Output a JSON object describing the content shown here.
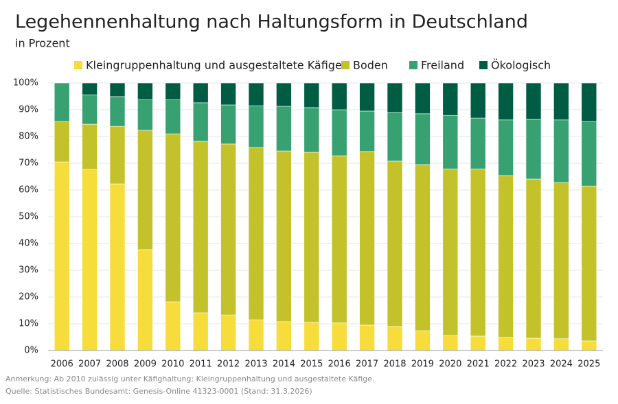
{
  "chart_data": {
    "type": "stacked_bar",
    "title": "Legehennenhaltung nach Haltungsform in Deutschland",
    "subtitle": "in Prozent",
    "categories": [
      "2006",
      "2007",
      "2008",
      "2009",
      "2010",
      "2011",
      "2012",
      "2013",
      "2014",
      "2015",
      "2016",
      "2017",
      "2018",
      "2019",
      "2020",
      "2021",
      "2022",
      "2023",
      "2024",
      "2025"
    ],
    "series": [
      {
        "name": "Kleingruppenhaltung und ausgestaltete Käfige",
        "color": "#f7dd3b",
        "values": [
          70.5,
          67.7,
          62.3,
          37.7,
          18.2,
          14.1,
          13.3,
          11.5,
          10.8,
          10.5,
          10.3,
          9.5,
          9.0,
          7.4,
          5.6,
          5.4,
          4.9,
          4.6,
          4.4,
          3.6
        ]
      },
      {
        "name": "Boden",
        "color": "#c3c22a",
        "values": [
          15.1,
          16.9,
          21.5,
          44.6,
          62.8,
          64.1,
          63.9,
          64.4,
          63.8,
          63.6,
          62.5,
          64.9,
          61.8,
          62.1,
          62.3,
          62.5,
          60.5,
          59.5,
          58.4,
          57.9
        ]
      },
      {
        "name": "Freiland",
        "color": "#37a172",
        "values": [
          14.4,
          11.0,
          11.1,
          11.5,
          12.8,
          14.4,
          14.6,
          15.6,
          16.7,
          16.7,
          17.2,
          15.1,
          18.2,
          19.0,
          20.0,
          19.0,
          20.8,
          22.3,
          23.4,
          24.1
        ]
      },
      {
        "name": "Ökologisch",
        "color": "#005c42",
        "values": [
          0,
          4.4,
          5.1,
          6.2,
          6.2,
          7.4,
          8.2,
          8.5,
          8.7,
          9.2,
          10.0,
          10.5,
          11.0,
          11.5,
          12.1,
          13.1,
          13.8,
          13.6,
          13.8,
          14.4
        ]
      }
    ],
    "ylim": [
      0,
      100
    ],
    "yticks": [
      {
        "value": 0,
        "label": "0%"
      },
      {
        "value": 10,
        "label": "10%"
      },
      {
        "value": 20,
        "label": "20%"
      },
      {
        "value": 30,
        "label": "30%"
      },
      {
        "value": 40,
        "label": "40%"
      },
      {
        "value": 50,
        "label": "50%"
      },
      {
        "value": 60,
        "label": "60%"
      },
      {
        "value": 70,
        "label": "70%"
      },
      {
        "value": 80,
        "label": "80%"
      },
      {
        "value": 90,
        "label": "90%"
      },
      {
        "value": 100,
        "label": "100%"
      }
    ],
    "grid": true,
    "notes": [
      "Anmerkung: Ab 2010 zulässig unter Käfighaltung: Kleingruppenhaltung und ausgestaltete Käfige.",
      "Quelle: Statistisches Bundesamt: Genesis-Online 41323-0001 (Stand: 31.3.2026)"
    ]
  }
}
